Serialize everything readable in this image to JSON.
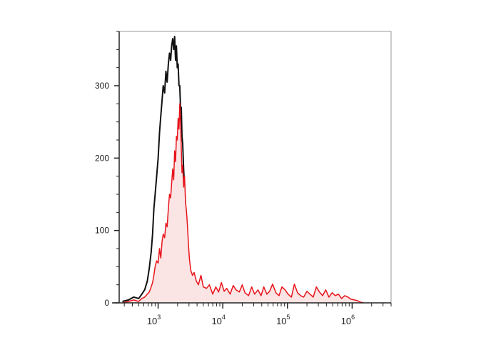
{
  "chart_data": {
    "type": "area",
    "title": "",
    "xlabel": "",
    "ylabel": "",
    "x_scale": "log",
    "xlim": [
      250,
      4000000
    ],
    "ylim": [
      0,
      375
    ],
    "y_ticks": [
      {
        "value": 0,
        "label": "0"
      },
      {
        "value": 100,
        "label": "100"
      },
      {
        "value": 200,
        "label": "200"
      },
      {
        "value": 300,
        "label": "300"
      }
    ],
    "x_ticks": [
      {
        "value": 1000,
        "base": "10",
        "exp": "3"
      },
      {
        "value": 10000,
        "base": "10",
        "exp": "4"
      },
      {
        "value": 100000,
        "base": "10",
        "exp": "5"
      },
      {
        "value": 1000000,
        "base": "10",
        "exp": "6"
      }
    ],
    "grid": false,
    "legend": "none",
    "series": [
      {
        "color": "#111111",
        "fill": "none",
        "x": [
          280,
          350,
          420,
          500,
          560,
          620,
          680,
          730,
          780,
          820,
          860,
          900,
          950,
          1000,
          1050,
          1100,
          1150,
          1200,
          1260,
          1320,
          1380,
          1440,
          1500,
          1560,
          1620,
          1680,
          1740,
          1800,
          1860,
          1920,
          1980,
          2040,
          2100,
          2160,
          2220,
          2280,
          2340,
          2400,
          2480,
          2560,
          2650,
          2750,
          2850,
          2950,
          3050,
          3200,
          3400,
          3600,
          3900,
          4200,
          4600,
          5000,
          5600,
          6200,
          7000
        ],
        "values": [
          2,
          4,
          8,
          6,
          12,
          18,
          30,
          48,
          70,
          95,
          130,
          150,
          175,
          200,
          235,
          258,
          280,
          300,
          290,
          320,
          305,
          330,
          345,
          335,
          355,
          365,
          350,
          368,
          335,
          355,
          325,
          330,
          300,
          300,
          268,
          270,
          230,
          220,
          185,
          160,
          135,
          110,
          85,
          62,
          45,
          30,
          20,
          14,
          9,
          6,
          4,
          3,
          2,
          1,
          0
        ]
      },
      {
        "color": "#e8141b",
        "fill": "#fbe4e4",
        "x": [
          280,
          350,
          420,
          500,
          560,
          620,
          680,
          730,
          780,
          820,
          860,
          900,
          950,
          1000,
          1050,
          1100,
          1150,
          1200,
          1260,
          1320,
          1380,
          1440,
          1500,
          1560,
          1620,
          1680,
          1740,
          1800,
          1860,
          1920,
          1980,
          2040,
          2100,
          2160,
          2220,
          2280,
          2340,
          2400,
          2480,
          2560,
          2650,
          2750,
          2850,
          2950,
          3050,
          3200,
          3400,
          3600,
          3900,
          4200,
          4600,
          5000,
          5600,
          6200,
          7000,
          7800,
          8600,
          9500,
          10500,
          11500,
          13000,
          14500,
          16000,
          18000,
          20000,
          22000,
          25000,
          28000,
          31000,
          35000,
          39000,
          43000,
          48000,
          53000,
          59000,
          66000,
          74000,
          82000,
          92000,
          102000,
          115000,
          128000,
          143000,
          160000,
          178000,
          200000,
          223000,
          250000,
          280000,
          312000,
          350000,
          390000,
          437000,
          490000,
          548000,
          613000,
          686000,
          768000,
          860000,
          960000,
          1080000,
          1210000,
          1350000,
          1500000
        ],
        "values": [
          0,
          2,
          4,
          2,
          6,
          8,
          12,
          15,
          22,
          28,
          38,
          50,
          58,
          55,
          75,
          62,
          85,
          95,
          90,
          110,
          105,
          130,
          150,
          145,
          165,
          185,
          170,
          210,
          195,
          230,
          225,
          255,
          240,
          275,
          250,
          215,
          180,
          190,
          160,
          175,
          140,
          125,
          105,
          80,
          60,
          45,
          38,
          42,
          30,
          25,
          38,
          22,
          20,
          25,
          12,
          22,
          15,
          28,
          16,
          20,
          12,
          24,
          18,
          15,
          25,
          14,
          10,
          22,
          12,
          18,
          10,
          22,
          12,
          16,
          26,
          14,
          10,
          22,
          18,
          12,
          8,
          26,
          14,
          10,
          8,
          16,
          12,
          8,
          22,
          15,
          10,
          18,
          8,
          14,
          10,
          12,
          6,
          10,
          8,
          5,
          4,
          3,
          1,
          0
        ]
      }
    ]
  }
}
